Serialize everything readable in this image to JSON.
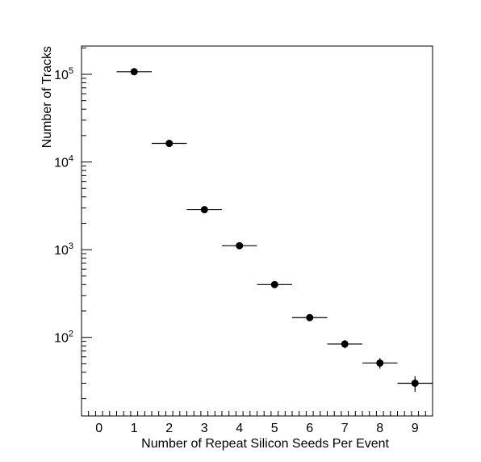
{
  "chart_data": {
    "type": "scatter",
    "xlabel": "Number of Repeat Silicon Seeds Per Event",
    "ylabel": "Number of Tracks",
    "xlim": [
      -0.5,
      9.5
    ],
    "ylim": [
      12.7,
      210000
    ],
    "y_scale": "log",
    "x_ticks": [
      "0",
      "1",
      "2",
      "3",
      "4",
      "5",
      "6",
      "7",
      "8",
      "9"
    ],
    "y_ticks": [
      {
        "base": "10",
        "exp": "2",
        "value": 100
      },
      {
        "base": "10",
        "exp": "3",
        "value": 1000
      },
      {
        "base": "10",
        "exp": "4",
        "value": 10000
      },
      {
        "base": "10",
        "exp": "5",
        "value": 100000
      }
    ],
    "x_bin_halfwidth": 0.5,
    "legend": "none",
    "grid": false,
    "color": "#000000",
    "points": [
      {
        "x": 1,
        "y": 107000,
        "yerr": 330
      },
      {
        "x": 2,
        "y": 16300,
        "yerr": 130
      },
      {
        "x": 3,
        "y": 2860,
        "yerr": 53
      },
      {
        "x": 4,
        "y": 1110,
        "yerr": 33
      },
      {
        "x": 5,
        "y": 400,
        "yerr": 20
      },
      {
        "x": 6,
        "y": 168,
        "yerr": 13
      },
      {
        "x": 7,
        "y": 84,
        "yerr": 9
      },
      {
        "x": 8,
        "y": 51,
        "yerr": 7
      },
      {
        "x": 9,
        "y": 30,
        "yerr": 6
      }
    ]
  }
}
